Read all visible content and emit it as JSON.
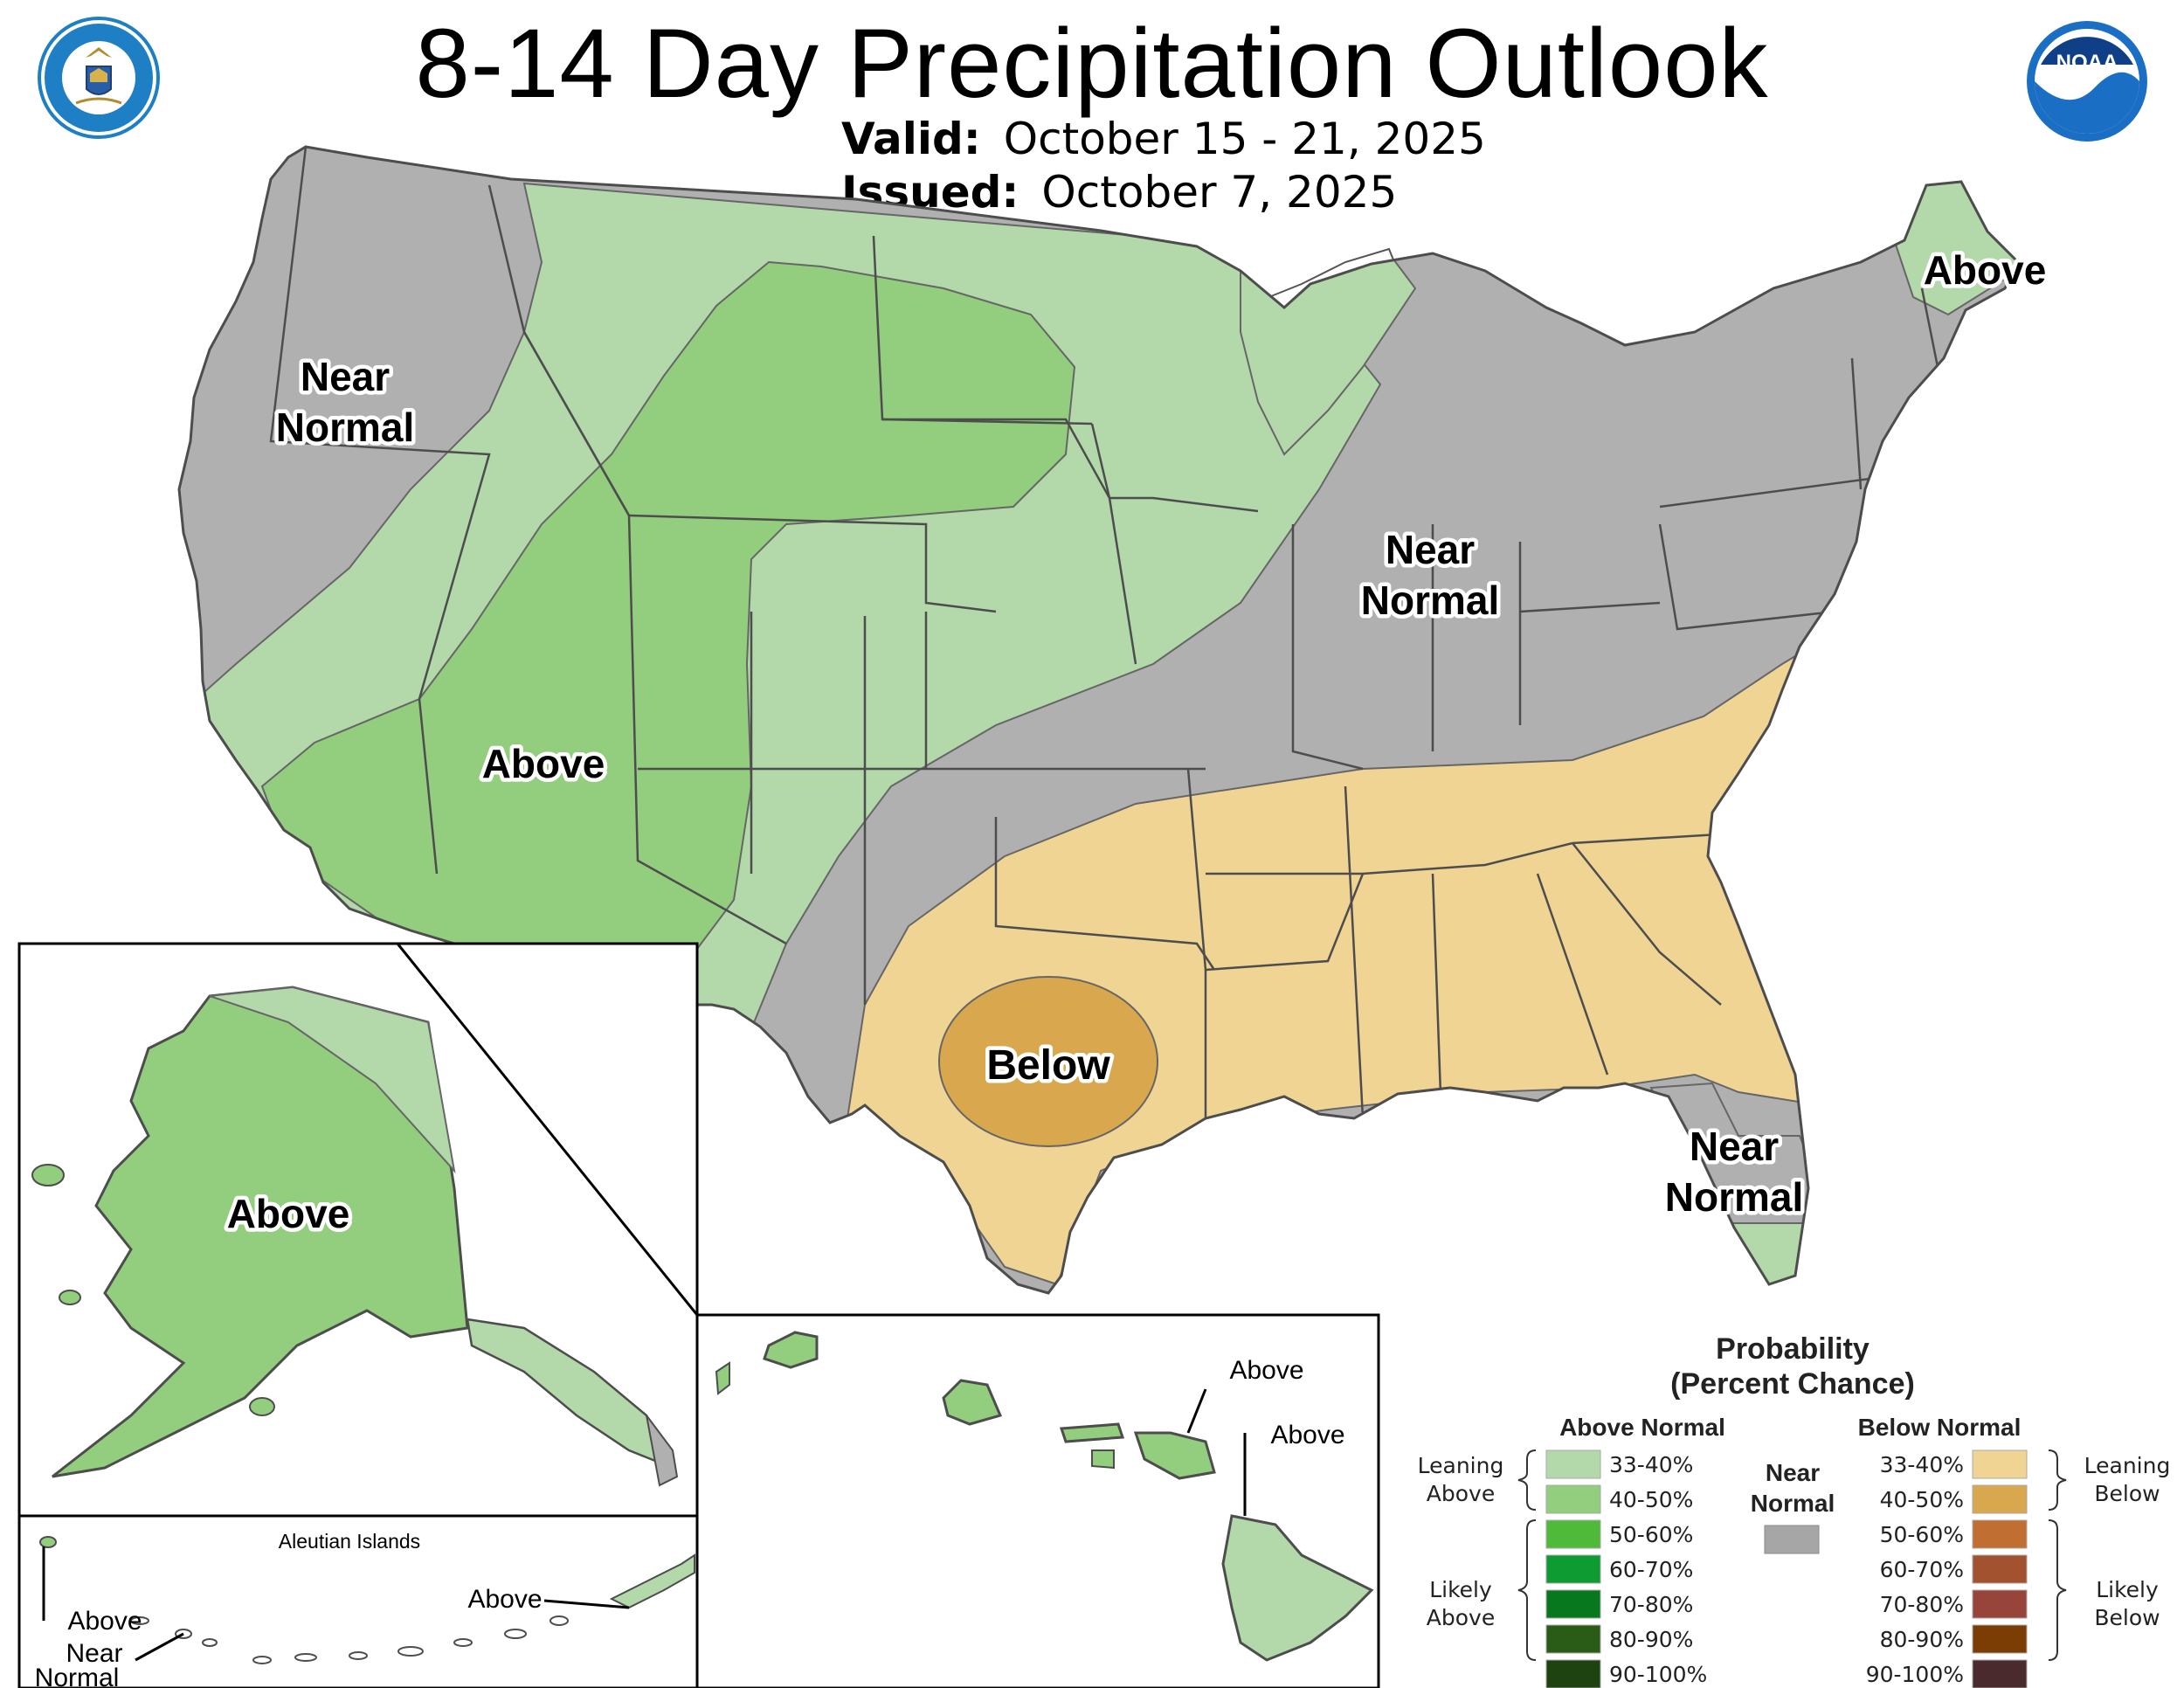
{
  "header": {
    "title": "8-14 Day Precipitation Outlook",
    "valid_label": "Valid:",
    "valid_value": "October 15 - 21, 2025",
    "issued_label": "Issued:",
    "issued_value": "October 7, 2025"
  },
  "logos": {
    "left": {
      "icon": "department-of-commerce-seal",
      "ring_text": "DEPARTMENT OF COMMERCE · UNITED STATES OF AMERICA",
      "color": "#1f7fc4"
    },
    "right": {
      "icon": "noaa-logo",
      "text": "NOAA",
      "color": "#1a6fc4"
    }
  },
  "map_labels": {
    "northwest": [
      "Near",
      "Normal"
    ],
    "southwest": "Above",
    "midwest": [
      "Near",
      "Normal"
    ],
    "maine": "Above",
    "texas": "Below",
    "florida": [
      "Near",
      "Normal"
    ],
    "alaska": "Above",
    "hawaii_maui": "Above",
    "hawaii_big_island": "Above",
    "aleutian_title": "Aleutian Islands",
    "aleutian_east": "Above",
    "aleutian_west": [
      "Above",
      "Near",
      "Normal"
    ]
  },
  "legend": {
    "title": [
      "Probability",
      "(Percent Chance)"
    ],
    "above_header": "Above Normal",
    "below_header": "Below Normal",
    "near_normal": [
      "Near",
      "Normal"
    ],
    "near_normal_color": "#a6a6a6",
    "leaning_above": [
      "Leaning",
      "Above"
    ],
    "likely_above": [
      "Likely",
      "Above"
    ],
    "leaning_below": [
      "Leaning",
      "Below"
    ],
    "likely_below": [
      "Likely",
      "Below"
    ],
    "above_rows": [
      {
        "label": "33-40%",
        "color": "#b3d9ab"
      },
      {
        "label": "40-50%",
        "color": "#93cd7e"
      },
      {
        "label": "50-60%",
        "color": "#4fba3a"
      },
      {
        "label": "60-70%",
        "color": "#0d9b32"
      },
      {
        "label": "70-80%",
        "color": "#08781f"
      },
      {
        "label": "80-90%",
        "color": "#2b5c17"
      },
      {
        "label": "90-100%",
        "color": "#1f4310"
      }
    ],
    "below_rows": [
      {
        "label": "33-40%",
        "color": "#f0d493"
      },
      {
        "label": "40-50%",
        "color": "#d8a74e"
      },
      {
        "label": "50-60%",
        "color": "#c06e32"
      },
      {
        "label": "60-70%",
        "color": "#a2522e"
      },
      {
        "label": "70-80%",
        "color": "#97443b"
      },
      {
        "label": "80-90%",
        "color": "#7c3d05"
      },
      {
        "label": "90-100%",
        "color": "#4a2a2d"
      }
    ]
  },
  "colors": {
    "near_normal": "#b0b0b1",
    "above_33_40": "#b3d9ab",
    "above_40_50": "#93cd7e",
    "below_33_40": "#f0d493",
    "below_40_50": "#d8a74e",
    "border": "#4d4d4d"
  }
}
